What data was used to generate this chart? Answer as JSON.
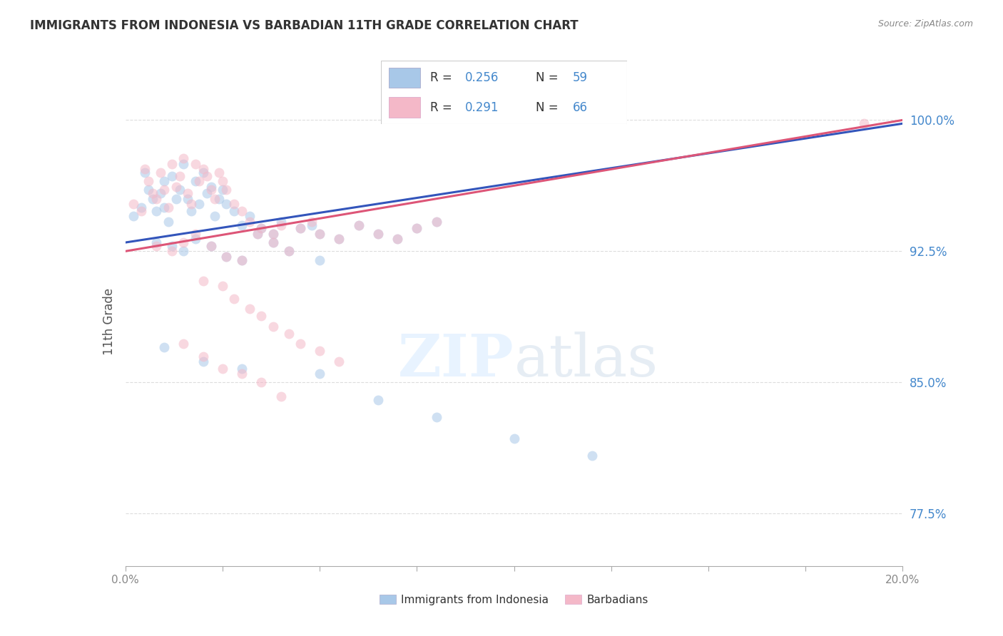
{
  "title": "IMMIGRANTS FROM INDONESIA VS BARBADIAN 11TH GRADE CORRELATION CHART",
  "source": "Source: ZipAtlas.com",
  "ylabel": "11th Grade",
  "ytick_labels": [
    "100.0%",
    "92.5%",
    "85.0%",
    "77.5%"
  ],
  "ytick_values": [
    1.0,
    0.925,
    0.85,
    0.775
  ],
  "xlim": [
    0.0,
    0.2
  ],
  "ylim": [
    0.745,
    1.025
  ],
  "blue_R": "0.256",
  "blue_N": "59",
  "pink_R": "0.291",
  "pink_N": "66",
  "blue_scatter_x": [
    0.002,
    0.004,
    0.005,
    0.006,
    0.007,
    0.008,
    0.009,
    0.01,
    0.01,
    0.011,
    0.012,
    0.013,
    0.014,
    0.015,
    0.016,
    0.017,
    0.018,
    0.019,
    0.02,
    0.021,
    0.022,
    0.023,
    0.024,
    0.025,
    0.026,
    0.028,
    0.03,
    0.032,
    0.035,
    0.038,
    0.04,
    0.045,
    0.048,
    0.05,
    0.055,
    0.06,
    0.065,
    0.07,
    0.075,
    0.08,
    0.008,
    0.012,
    0.015,
    0.018,
    0.022,
    0.026,
    0.03,
    0.034,
    0.038,
    0.042,
    0.01,
    0.02,
    0.03,
    0.05,
    0.065,
    0.08,
    0.1,
    0.12,
    0.05
  ],
  "blue_scatter_y": [
    0.945,
    0.95,
    0.97,
    0.96,
    0.955,
    0.948,
    0.958,
    0.965,
    0.95,
    0.942,
    0.968,
    0.955,
    0.96,
    0.975,
    0.955,
    0.948,
    0.965,
    0.952,
    0.97,
    0.958,
    0.962,
    0.945,
    0.955,
    0.96,
    0.952,
    0.948,
    0.94,
    0.945,
    0.938,
    0.935,
    0.942,
    0.938,
    0.94,
    0.935,
    0.932,
    0.94,
    0.935,
    0.932,
    0.938,
    0.942,
    0.93,
    0.928,
    0.925,
    0.932,
    0.928,
    0.922,
    0.92,
    0.935,
    0.93,
    0.925,
    0.87,
    0.862,
    0.858,
    0.855,
    0.84,
    0.83,
    0.818,
    0.808,
    0.92
  ],
  "pink_scatter_x": [
    0.002,
    0.004,
    0.005,
    0.006,
    0.007,
    0.008,
    0.009,
    0.01,
    0.011,
    0.012,
    0.013,
    0.014,
    0.015,
    0.016,
    0.017,
    0.018,
    0.019,
    0.02,
    0.021,
    0.022,
    0.023,
    0.024,
    0.025,
    0.026,
    0.028,
    0.03,
    0.032,
    0.035,
    0.038,
    0.04,
    0.045,
    0.048,
    0.05,
    0.055,
    0.06,
    0.065,
    0.07,
    0.075,
    0.08,
    0.008,
    0.012,
    0.015,
    0.018,
    0.022,
    0.026,
    0.03,
    0.034,
    0.038,
    0.042,
    0.015,
    0.02,
    0.025,
    0.03,
    0.035,
    0.04,
    0.19,
    0.02,
    0.025,
    0.028,
    0.032,
    0.035,
    0.038,
    0.042,
    0.045,
    0.05,
    0.055
  ],
  "pink_scatter_y": [
    0.952,
    0.948,
    0.972,
    0.965,
    0.958,
    0.955,
    0.97,
    0.96,
    0.95,
    0.975,
    0.962,
    0.968,
    0.978,
    0.958,
    0.952,
    0.975,
    0.965,
    0.972,
    0.968,
    0.96,
    0.955,
    0.97,
    0.965,
    0.96,
    0.952,
    0.948,
    0.942,
    0.938,
    0.935,
    0.94,
    0.938,
    0.942,
    0.935,
    0.932,
    0.94,
    0.935,
    0.932,
    0.938,
    0.942,
    0.928,
    0.925,
    0.93,
    0.935,
    0.928,
    0.922,
    0.92,
    0.935,
    0.93,
    0.925,
    0.872,
    0.865,
    0.858,
    0.855,
    0.85,
    0.842,
    0.998,
    0.908,
    0.905,
    0.898,
    0.892,
    0.888,
    0.882,
    0.878,
    0.872,
    0.868,
    0.862
  ],
  "blue_line_x": [
    0.0,
    0.2
  ],
  "blue_line_y": [
    0.93,
    0.998
  ],
  "pink_line_x": [
    0.0,
    0.2
  ],
  "pink_line_y": [
    0.925,
    1.0
  ],
  "watermark_zip": "ZIP",
  "watermark_atlas": "atlas",
  "scatter_size": 100,
  "scatter_alpha": 0.55,
  "line_width": 2.2,
  "blue_color": "#a8c8e8",
  "pink_color": "#f4b8c8",
  "blue_line_color": "#3355bb",
  "pink_line_color": "#dd5577",
  "grid_color": "#dddddd",
  "ytick_color": "#4488cc",
  "xtick_color": "#888888",
  "legend_text_color": "#4488cc",
  "legend_border_color": "#cccccc"
}
